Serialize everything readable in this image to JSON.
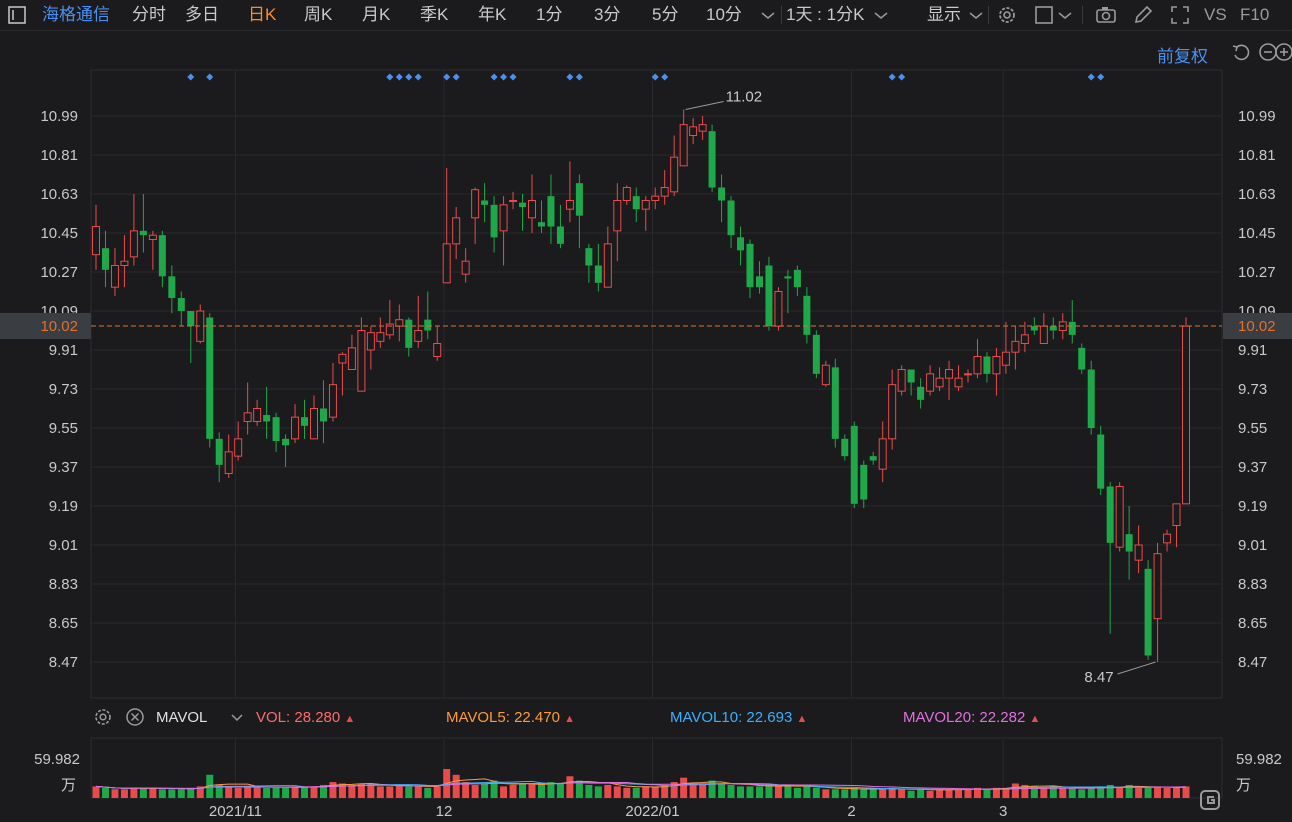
{
  "toolbar": {
    "stock_name": "海格通信",
    "items": [
      "分时",
      "多日",
      "日K",
      "周K",
      "月K",
      "季K",
      "年K",
      "1分",
      "3分",
      "5分",
      "10分"
    ],
    "active_index": 2,
    "period_select": "1天 : 1分K",
    "display_label": "显示",
    "right_labels": [
      "VS",
      "F10"
    ]
  },
  "fuquan_label": "前复权",
  "price_axis": {
    "ticks": [
      10.99,
      10.81,
      10.63,
      10.45,
      10.27,
      10.09,
      9.91,
      9.73,
      9.55,
      9.37,
      9.19,
      9.01,
      8.83,
      8.65,
      8.47
    ],
    "labels": [
      "10.99",
      "10.81",
      "10.63",
      "10.45",
      "10.27",
      "10.09",
      "9.91",
      "9.73",
      "9.55",
      "9.37",
      "9.19",
      "9.01",
      "8.83",
      "8.65",
      "8.47"
    ],
    "current_label": "10.02",
    "high_label": "11.02",
    "low_label": "8.47",
    "colors": {
      "up": "#e84b4b",
      "down": "#1ea84a",
      "current_line": "#e0702a",
      "marker": "#4a90f0"
    }
  },
  "date_axis": {
    "labels": [
      "2021/11",
      "12",
      "2022/01",
      "2",
      "3"
    ]
  },
  "volume": {
    "indicator_name": "MAVOL",
    "vol": {
      "label": "VOL: 28.280",
      "color": "#ff6a6a"
    },
    "mavol5": {
      "label": "MAVOL5: 22.470",
      "color": "#ff9a3c"
    },
    "mavol10": {
      "label": "MAVOL10: 22.693",
      "color": "#3ab0ff"
    },
    "mavol20": {
      "label": "MAVOL20: 22.282",
      "color": "#e070e0"
    },
    "axis_top": "59.982",
    "axis_unit": "万"
  },
  "chart_data": {
    "type": "candlestick",
    "ylim": [
      8.38,
      11.1
    ],
    "markers_at": [
      10,
      12,
      31,
      32,
      33,
      34,
      37,
      38,
      42,
      43,
      44,
      50,
      51,
      59,
      60,
      84,
      85,
      105,
      106
    ],
    "candles": [
      [
        10.35,
        10.48,
        10.28,
        10.58
      ],
      [
        10.38,
        10.28,
        10.2,
        10.46
      ],
      [
        10.2,
        10.3,
        10.16,
        10.38
      ],
      [
        10.3,
        10.32,
        10.2,
        10.44
      ],
      [
        10.34,
        10.46,
        10.3,
        10.63
      ],
      [
        10.46,
        10.44,
        10.36,
        10.63
      ],
      [
        10.42,
        10.44,
        10.28,
        10.46
      ],
      [
        10.44,
        10.25,
        10.2,
        10.46
      ],
      [
        10.25,
        10.15,
        10.08,
        10.3
      ],
      [
        10.15,
        10.09,
        10.02,
        10.18
      ],
      [
        10.09,
        10.02,
        9.85,
        10.09
      ],
      [
        9.95,
        10.09,
        9.94,
        10.12
      ],
      [
        10.06,
        9.5,
        9.46,
        10.08
      ],
      [
        9.5,
        9.38,
        9.3,
        9.53
      ],
      [
        9.34,
        9.44,
        9.32,
        9.52
      ],
      [
        9.42,
        9.5,
        9.4,
        9.58
      ],
      [
        9.58,
        9.62,
        9.52,
        9.76
      ],
      [
        9.58,
        9.64,
        9.56,
        9.68
      ],
      [
        9.61,
        9.58,
        9.5,
        9.74
      ],
      [
        9.6,
        9.49,
        9.44,
        9.62
      ],
      [
        9.5,
        9.47,
        9.37,
        9.52
      ],
      [
        9.5,
        9.6,
        9.48,
        9.66
      ],
      [
        9.6,
        9.56,
        9.5,
        9.68
      ],
      [
        9.5,
        9.64,
        9.5,
        9.7
      ],
      [
        9.64,
        9.58,
        9.48,
        9.77
      ],
      [
        9.6,
        9.75,
        9.58,
        9.85
      ],
      [
        9.85,
        9.89,
        9.7,
        9.9
      ],
      [
        9.82,
        9.92,
        9.82,
        9.98
      ],
      [
        9.72,
        10.0,
        9.72,
        10.06
      ],
      [
        9.91,
        9.99,
        9.82,
        10.02
      ],
      [
        9.95,
        9.99,
        9.92,
        10.06
      ],
      [
        9.98,
        10.03,
        9.96,
        10.14
      ],
      [
        10.02,
        10.05,
        9.95,
        10.12
      ],
      [
        10.05,
        9.92,
        9.88,
        10.06
      ],
      [
        9.95,
        10.0,
        9.92,
        10.16
      ],
      [
        10.05,
        10.0,
        9.96,
        10.18
      ],
      [
        9.88,
        9.94,
        9.86,
        10.02
      ],
      [
        10.22,
        10.4,
        10.22,
        10.75
      ],
      [
        10.4,
        10.52,
        10.33,
        10.57
      ],
      [
        10.26,
        10.32,
        10.22,
        10.38
      ],
      [
        10.52,
        10.65,
        10.4,
        10.66
      ],
      [
        10.6,
        10.58,
        10.5,
        10.68
      ],
      [
        10.58,
        10.43,
        10.36,
        10.62
      ],
      [
        10.46,
        10.58,
        10.3,
        10.62
      ],
      [
        10.6,
        10.6,
        10.56,
        10.64
      ],
      [
        10.59,
        10.57,
        10.46,
        10.63
      ],
      [
        10.52,
        10.6,
        10.45,
        10.72
      ],
      [
        10.5,
        10.48,
        10.45,
        10.6
      ],
      [
        10.62,
        10.48,
        10.4,
        10.72
      ],
      [
        10.48,
        10.4,
        10.38,
        10.58
      ],
      [
        10.56,
        10.6,
        10.5,
        10.78
      ],
      [
        10.68,
        10.53,
        10.38,
        10.72
      ],
      [
        10.38,
        10.3,
        10.22,
        10.4
      ],
      [
        10.3,
        10.22,
        10.18,
        10.4
      ],
      [
        10.2,
        10.4,
        10.2,
        10.48
      ],
      [
        10.46,
        10.6,
        10.32,
        10.68
      ],
      [
        10.6,
        10.66,
        10.58,
        10.67
      ],
      [
        10.62,
        10.56,
        10.5,
        10.66
      ],
      [
        10.56,
        10.6,
        10.46,
        10.62
      ],
      [
        10.6,
        10.62,
        10.56,
        10.66
      ],
      [
        10.62,
        10.66,
        10.58,
        10.74
      ],
      [
        10.64,
        10.8,
        10.62,
        10.9
      ],
      [
        10.76,
        10.95,
        10.76,
        11.02
      ],
      [
        10.9,
        10.94,
        10.86,
        10.98
      ],
      [
        10.92,
        10.95,
        10.88,
        10.99
      ],
      [
        10.92,
        10.66,
        10.64,
        10.95
      ],
      [
        10.66,
        10.6,
        10.5,
        10.72
      ],
      [
        10.6,
        10.44,
        10.38,
        10.62
      ],
      [
        10.43,
        10.37,
        10.3,
        10.48
      ],
      [
        10.4,
        10.2,
        10.15,
        10.42
      ],
      [
        10.25,
        10.2,
        10.17,
        10.32
      ],
      [
        10.3,
        10.02,
        10.0,
        10.34
      ],
      [
        10.02,
        10.18,
        10.0,
        10.2
      ],
      [
        10.25,
        10.24,
        10.08,
        10.28
      ],
      [
        10.28,
        10.2,
        10.16,
        10.3
      ],
      [
        10.16,
        9.98,
        9.94,
        10.2
      ],
      [
        9.98,
        9.8,
        9.78,
        10.0
      ],
      [
        9.75,
        9.84,
        9.74,
        9.86
      ],
      [
        9.83,
        9.5,
        9.46,
        9.87
      ],
      [
        9.5,
        9.42,
        9.4,
        9.52
      ],
      [
        9.56,
        9.2,
        9.18,
        9.58
      ],
      [
        9.38,
        9.22,
        9.18,
        9.4
      ],
      [
        9.42,
        9.4,
        9.38,
        9.44
      ],
      [
        9.36,
        9.5,
        9.3,
        9.58
      ],
      [
        9.5,
        9.75,
        9.45,
        9.82
      ],
      [
        9.72,
        9.82,
        9.7,
        9.84
      ],
      [
        9.82,
        9.76,
        9.7,
        9.8
      ],
      [
        9.74,
        9.68,
        9.64,
        9.78
      ],
      [
        9.72,
        9.8,
        9.7,
        9.84
      ],
      [
        9.74,
        9.78,
        9.72,
        9.83
      ],
      [
        9.78,
        9.82,
        9.68,
        9.86
      ],
      [
        9.74,
        9.78,
        9.72,
        9.84
      ],
      [
        9.8,
        9.8,
        9.76,
        9.82
      ],
      [
        9.8,
        9.88,
        9.78,
        9.96
      ],
      [
        9.88,
        9.8,
        9.76,
        9.9
      ],
      [
        9.8,
        9.88,
        9.7,
        9.92
      ],
      [
        9.84,
        9.9,
        9.8,
        10.04
      ],
      [
        9.9,
        9.95,
        9.82,
        10.02
      ],
      [
        9.94,
        9.98,
        9.9,
        10.04
      ],
      [
        10.02,
        10.0,
        9.98,
        10.06
      ],
      [
        9.94,
        10.02,
        9.94,
        10.08
      ],
      [
        10.02,
        10.0,
        9.96,
        10.06
      ],
      [
        10.0,
        10.04,
        9.96,
        10.08
      ],
      [
        10.04,
        9.98,
        9.94,
        10.14
      ],
      [
        9.92,
        9.82,
        9.8,
        9.94
      ],
      [
        9.82,
        9.55,
        9.52,
        9.86
      ],
      [
        9.52,
        9.27,
        9.24,
        9.56
      ],
      [
        9.28,
        9.02,
        8.6,
        9.3
      ],
      [
        9.0,
        9.28,
        8.98,
        9.3
      ],
      [
        9.06,
        8.98,
        8.85,
        9.19
      ],
      [
        8.94,
        9.01,
        8.88,
        9.1
      ],
      [
        8.9,
        8.5,
        8.48,
        8.94
      ],
      [
        8.67,
        8.97,
        8.47,
        9.02
      ],
      [
        9.02,
        9.06,
        8.98,
        9.08
      ],
      [
        9.1,
        9.2,
        9.0,
        9.19
      ],
      [
        9.2,
        10.02,
        9.2,
        10.06
      ]
    ],
    "volumes": [
      8,
      7,
      6,
      6,
      7,
      7,
      7,
      6,
      6,
      6,
      7,
      8,
      16,
      9,
      8,
      7,
      8,
      8,
      7,
      7,
      7,
      8,
      8,
      8,
      9,
      11,
      10,
      9,
      10,
      10,
      8,
      8,
      9,
      8,
      8,
      7,
      8,
      20,
      16,
      11,
      9,
      10,
      12,
      8,
      9,
      10,
      10,
      9,
      11,
      10,
      15,
      12,
      9,
      8,
      9,
      8,
      7,
      7,
      8,
      8,
      9,
      11,
      14,
      10,
      9,
      12,
      10,
      9,
      8,
      8,
      8,
      9,
      8,
      9,
      7,
      8,
      7,
      6,
      6,
      6,
      7,
      6,
      6,
      6,
      7,
      6,
      5,
      6,
      5,
      6,
      6,
      6,
      6,
      7,
      6,
      7,
      7,
      10,
      9,
      8,
      7,
      8,
      7,
      7,
      6,
      7,
      8,
      9,
      7,
      9,
      7,
      7,
      8,
      7,
      7,
      8
    ],
    "volume_max": 59.982
  }
}
